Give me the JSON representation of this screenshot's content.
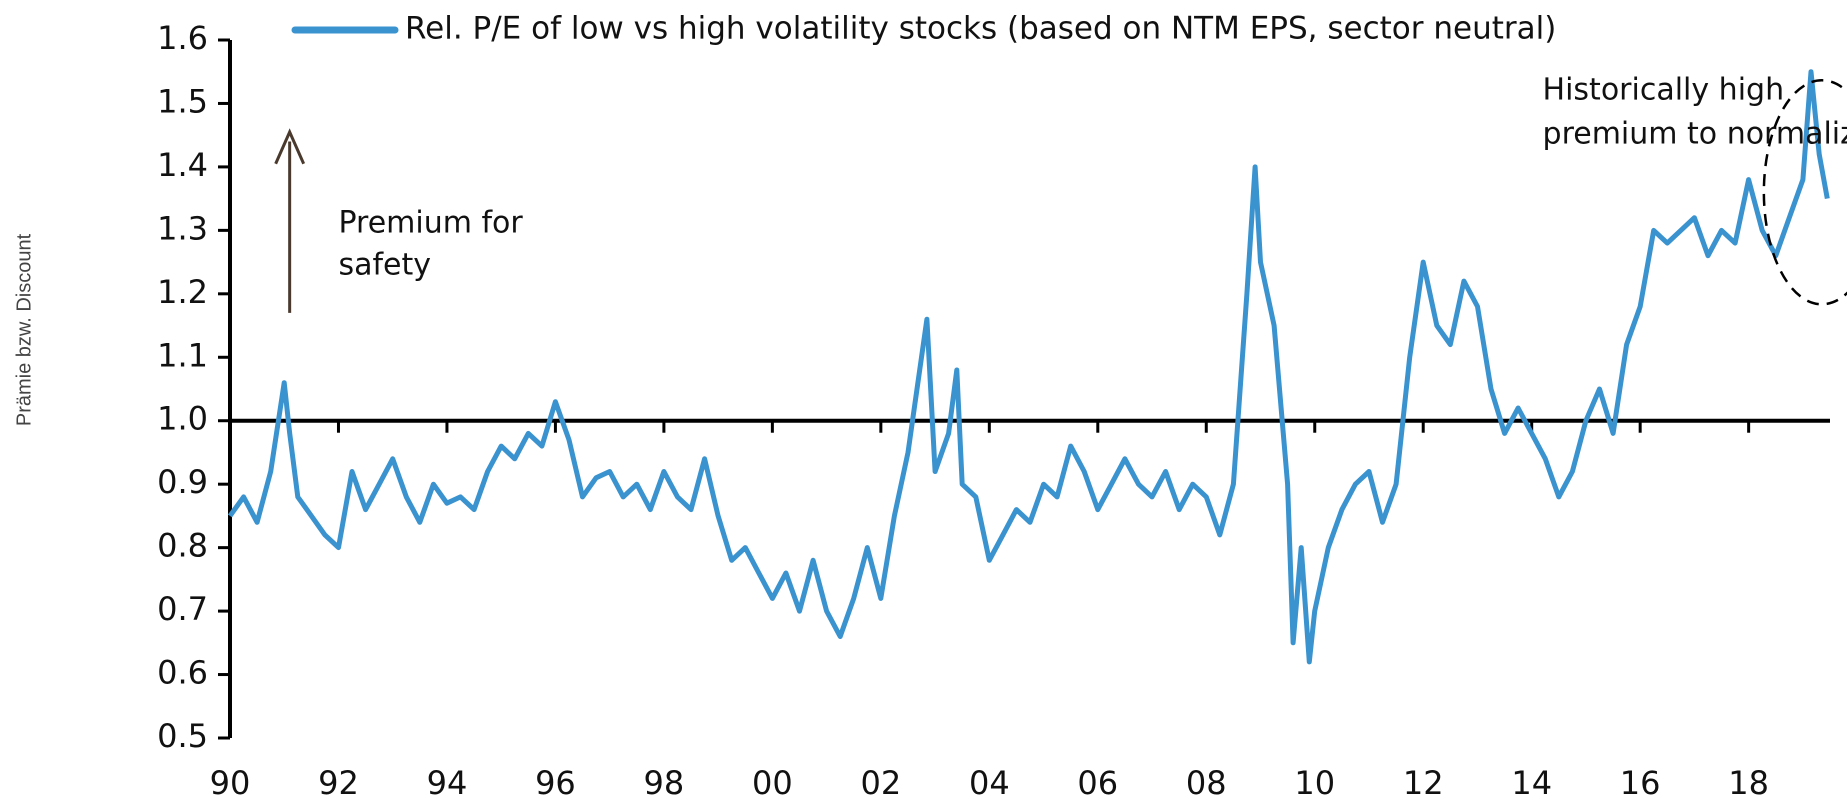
{
  "chart_data": {
    "type": "line",
    "y_label": "Prämie bzw. Discount",
    "series": [
      {
        "name": "Rel. P/E of low vs high volatility stocks (based on NTM EPS, sector neutral)",
        "color": "#3a93cf",
        "x": [
          1990.0,
          1990.25,
          1990.5,
          1990.75,
          1991.0,
          1991.1,
          1991.25,
          1991.5,
          1991.75,
          1992.0,
          1992.25,
          1992.5,
          1992.75,
          1993.0,
          1993.25,
          1993.5,
          1993.75,
          1994.0,
          1994.25,
          1994.5,
          1994.75,
          1995.0,
          1995.25,
          1995.5,
          1995.75,
          1996.0,
          1996.25,
          1996.5,
          1996.75,
          1997.0,
          1997.25,
          1997.5,
          1997.75,
          1998.0,
          1998.25,
          1998.5,
          1998.75,
          1999.0,
          1999.25,
          1999.5,
          1999.75,
          2000.0,
          2000.25,
          2000.5,
          2000.75,
          2001.0,
          2001.25,
          2001.5,
          2001.75,
          2002.0,
          2002.25,
          2002.5,
          2002.75,
          2002.85,
          2003.0,
          2003.25,
          2003.4,
          2003.5,
          2003.75,
          2004.0,
          2004.25,
          2004.5,
          2004.75,
          2005.0,
          2005.25,
          2005.5,
          2005.75,
          2006.0,
          2006.25,
          2006.5,
          2006.75,
          2007.0,
          2007.25,
          2007.5,
          2007.75,
          2008.0,
          2008.25,
          2008.5,
          2008.75,
          2008.9,
          2009.0,
          2009.25,
          2009.5,
          2009.6,
          2009.75,
          2009.9,
          2010.0,
          2010.25,
          2010.5,
          2010.75,
          2011.0,
          2011.25,
          2011.5,
          2011.75,
          2012.0,
          2012.25,
          2012.5,
          2012.75,
          2013.0,
          2013.25,
          2013.5,
          2013.75,
          2014.0,
          2014.25,
          2014.5,
          2014.75,
          2015.0,
          2015.25,
          2015.5,
          2015.75,
          2016.0,
          2016.25,
          2016.5,
          2016.75,
          2017.0,
          2017.25,
          2017.5,
          2017.75,
          2018.0,
          2018.25,
          2018.5,
          2018.75,
          2019.0,
          2019.15,
          2019.3,
          2019.45
        ],
        "values": [
          0.85,
          0.88,
          0.84,
          0.92,
          1.06,
          0.98,
          0.88,
          0.85,
          0.82,
          0.8,
          0.92,
          0.86,
          0.9,
          0.94,
          0.88,
          0.84,
          0.9,
          0.87,
          0.88,
          0.86,
          0.92,
          0.96,
          0.94,
          0.98,
          0.96,
          1.03,
          0.97,
          0.88,
          0.91,
          0.92,
          0.88,
          0.9,
          0.86,
          0.92,
          0.88,
          0.86,
          0.94,
          0.85,
          0.78,
          0.8,
          0.76,
          0.72,
          0.76,
          0.7,
          0.78,
          0.7,
          0.66,
          0.72,
          0.8,
          0.72,
          0.85,
          0.95,
          1.1,
          1.16,
          0.92,
          0.98,
          1.08,
          0.9,
          0.88,
          0.78,
          0.82,
          0.86,
          0.84,
          0.9,
          0.88,
          0.96,
          0.92,
          0.86,
          0.9,
          0.94,
          0.9,
          0.88,
          0.92,
          0.86,
          0.9,
          0.88,
          0.82,
          0.9,
          1.2,
          1.4,
          1.25,
          1.15,
          0.9,
          0.65,
          0.8,
          0.62,
          0.7,
          0.8,
          0.86,
          0.9,
          0.92,
          0.84,
          0.9,
          1.1,
          1.25,
          1.15,
          1.12,
          1.22,
          1.18,
          1.05,
          0.98,
          1.02,
          0.98,
          0.94,
          0.88,
          0.92,
          1.0,
          1.05,
          0.98,
          1.12,
          1.18,
          1.3,
          1.28,
          1.3,
          1.32,
          1.26,
          1.3,
          1.28,
          1.38,
          1.3,
          1.26,
          1.32,
          1.38,
          1.55,
          1.42,
          1.35
        ]
      }
    ],
    "xlim": [
      1990,
      2019.5
    ],
    "xticks": [
      {
        "value": 1990,
        "label": "90"
      },
      {
        "value": 1992,
        "label": "92"
      },
      {
        "value": 1994,
        "label": "94"
      },
      {
        "value": 1996,
        "label": "96"
      },
      {
        "value": 1998,
        "label": "98"
      },
      {
        "value": 2000,
        "label": "00"
      },
      {
        "value": 2002,
        "label": "02"
      },
      {
        "value": 2004,
        "label": "04"
      },
      {
        "value": 2006,
        "label": "06"
      },
      {
        "value": 2008,
        "label": "08"
      },
      {
        "value": 2010,
        "label": "10"
      },
      {
        "value": 2012,
        "label": "12"
      },
      {
        "value": 2014,
        "label": "14"
      },
      {
        "value": 2016,
        "label": "16"
      },
      {
        "value": 2018,
        "label": "18"
      }
    ],
    "ylim": [
      0.5,
      1.6
    ],
    "yticks": [
      {
        "value": 0.5,
        "label": "0.5"
      },
      {
        "value": 0.6,
        "label": "0.6"
      },
      {
        "value": 0.7,
        "label": "0.7"
      },
      {
        "value": 0.8,
        "label": "0.8"
      },
      {
        "value": 0.9,
        "label": "0.9"
      },
      {
        "value": 1.0,
        "label": "1.0"
      },
      {
        "value": 1.1,
        "label": "1.1"
      },
      {
        "value": 1.2,
        "label": "1.2"
      },
      {
        "value": 1.3,
        "label": "1.3"
      },
      {
        "value": 1.4,
        "label": "1.4"
      },
      {
        "value": 1.5,
        "label": "1.5"
      },
      {
        "value": 1.6,
        "label": "1.6"
      }
    ],
    "x_axis_at": 1.0,
    "annotations": [
      {
        "lines": [
          "Premium for",
          "safety"
        ]
      },
      {
        "lines": [
          "Historically high",
          "premium to normalize"
        ]
      }
    ]
  }
}
